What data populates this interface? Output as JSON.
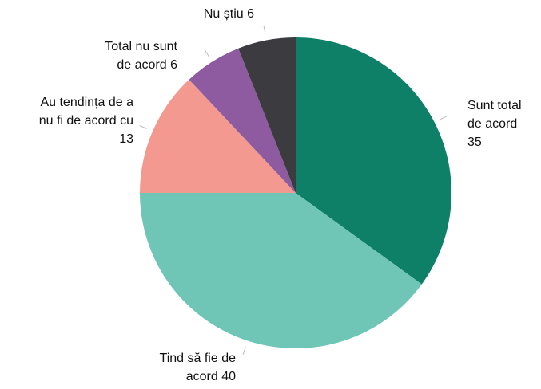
{
  "chart_data": {
    "type": "pie",
    "categories": [
      "Sunt total de acord",
      "Tind să fie de acord",
      "Au tendința de a nu fi de acord cu",
      "Total nu sunt de acord",
      "Nu știu"
    ],
    "values": [
      35,
      40,
      13,
      6,
      6
    ],
    "colors": [
      "#0e8068",
      "#6fc6b6",
      "#f4998f",
      "#8e5aa0",
      "#3b3b40"
    ]
  }
}
